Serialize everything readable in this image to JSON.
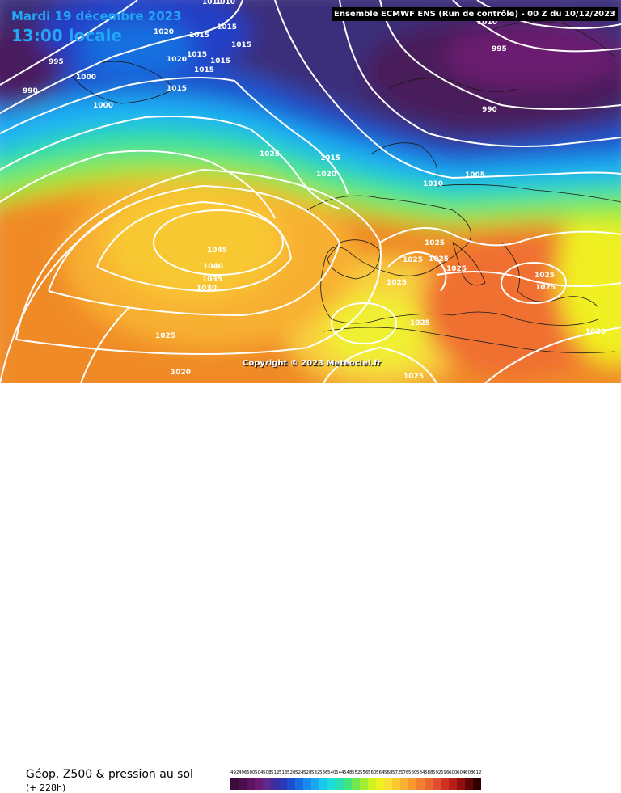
{
  "header": {
    "date": "Mardi 19 décembre 2023",
    "time": "13:00 locale",
    "model": "Ensemble ECMWF ENS  (Run de contrôle)  - 00 Z du 10/12/2023"
  },
  "copyright": "Copyright © 2023 Meteociel.fr",
  "footer": {
    "parameter": "Géop. Z500 & pression au sol",
    "range": "(+ 228h)"
  },
  "scale": {
    "labels": [
      "492",
      "496",
      "500",
      "504",
      "508",
      "512",
      "516",
      "520",
      "524",
      "528",
      "532",
      "536",
      "540",
      "544",
      "548",
      "552",
      "556",
      "560",
      "564",
      "568",
      "572",
      "576",
      "580",
      "584",
      "588",
      "592",
      "596",
      "600",
      "604",
      "608",
      "612"
    ],
    "colors": [
      "#3b0b39",
      "#4b0f4d",
      "#5c1361",
      "#6d1a75",
      "#5a2a8c",
      "#3f2aa0",
      "#2a37b8",
      "#1e4fd0",
      "#1a6be0",
      "#1a8af0",
      "#1aa8f5",
      "#1ac8f0",
      "#20dcd8",
      "#28e0b0",
      "#40e480",
      "#70e850",
      "#a0ec30",
      "#d0f020",
      "#f0f020",
      "#f8e030",
      "#f8c830",
      "#f8b030",
      "#f89830",
      "#f08030",
      "#e86830",
      "#e05030",
      "#d03020",
      "#b82018",
      "#901010",
      "#600808",
      "#300000"
    ]
  },
  "isobars": [
    "1010",
    "1020",
    "1015",
    "1015",
    "995",
    "1015",
    "1020",
    "1015",
    "1015",
    "1015",
    "1000",
    "1000",
    "990",
    "1015",
    "1010",
    "1010",
    "995",
    "1025",
    "990",
    "1015",
    "1020",
    "1005",
    "1010",
    "1025",
    "1045",
    "1025",
    "1025",
    "1040",
    "1025",
    "1025",
    "1035",
    "1030",
    "1025",
    "1025",
    "1025",
    "1025",
    "1020",
    "1020",
    "1025"
  ],
  "map_legend_colors": {
    "low_geopotential": "#3b0b39",
    "high_geopotential": "#d03020",
    "isobar_line": "#ffffff"
  }
}
